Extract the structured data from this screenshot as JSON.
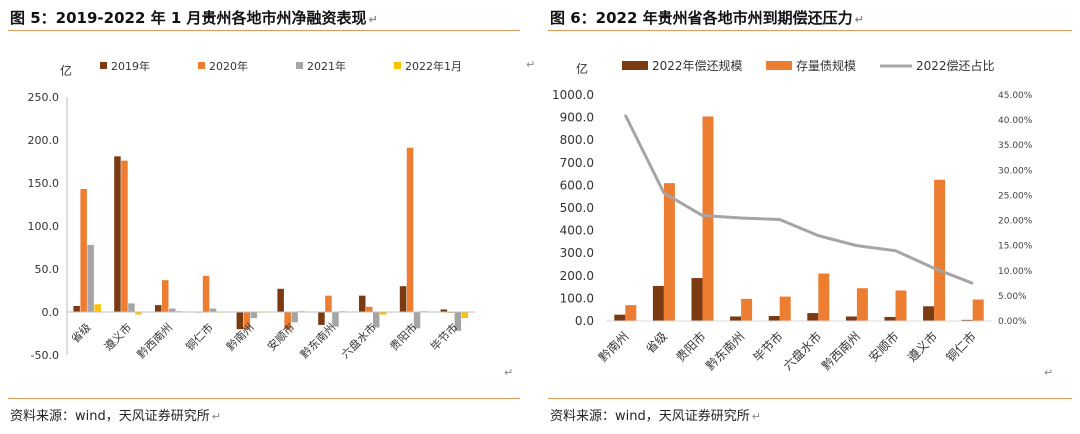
{
  "left": {
    "title": "图 5：2019-2022 年 1 月贵州各地市州净融资表现",
    "source": "资料来源：wind，天风证券研究所",
    "return_mark": "↵",
    "chart_data": {
      "type": "bar",
      "title": "图 5：2019-2022 年 1 月贵州各地市州净融资表现",
      "ylabel": "亿",
      "xlabel": "",
      "ylim": [
        -50,
        250
      ],
      "yticks": [
        "-50.0",
        "0.0",
        "50.0",
        "100.0",
        "150.0",
        "200.0",
        "250.0"
      ],
      "ytick_values": [
        -50,
        0,
        50,
        100,
        150,
        200,
        250
      ],
      "categories": [
        "省级",
        "遵义市",
        "黔西南州",
        "铜仁市",
        "黔南州",
        "安顺市",
        "黔东南州",
        "六盘水市",
        "贵阳市",
        "毕节市"
      ],
      "series": [
        {
          "name": "2019年",
          "color": "#7b3a12",
          "values": [
            7,
            181,
            8,
            0,
            -20,
            27,
            -15,
            19,
            30,
            3
          ]
        },
        {
          "name": "2020年",
          "color": "#ed7d31",
          "values": [
            143,
            176,
            37,
            42,
            -20,
            -20,
            19,
            6,
            191,
            -1
          ]
        },
        {
          "name": "2021年",
          "color": "#a5a5a5",
          "values": [
            78,
            10,
            4,
            4,
            -7,
            -12,
            -17,
            -18,
            -19,
            -22
          ]
        },
        {
          "name": "2022年1月",
          "color": "#ffc000",
          "values": [
            9,
            -3,
            1,
            0,
            0,
            1,
            1,
            -3,
            1,
            -7
          ]
        }
      ],
      "legend_position": "top",
      "grid": false
    }
  },
  "right": {
    "title": "图 6：2022 年贵州省各地市州到期偿还压力",
    "source": "资料来源：wind，天风证券研究所",
    "return_mark": "↵",
    "chart_data": {
      "type": "bar",
      "title": "图 6：2022 年贵州省各地市州到期偿还压力",
      "ylabel": "亿",
      "xlabel": "",
      "ylim": [
        0,
        1000
      ],
      "yticks": [
        "0.0",
        "100.0",
        "200.0",
        "300.0",
        "400.0",
        "500.0",
        "600.0",
        "700.0",
        "800.0",
        "900.0",
        "1000.0"
      ],
      "ytick_values": [
        0,
        100,
        200,
        300,
        400,
        500,
        600,
        700,
        800,
        900,
        1000
      ],
      "y2lim": [
        0,
        45
      ],
      "y2ticks": [
        "0.00%",
        "5.00%",
        "10.00%",
        "15.00%",
        "20.00%",
        "25.00%",
        "30.00%",
        "35.00%",
        "40.00%",
        "45.00%"
      ],
      "y2tick_values": [
        0,
        5,
        10,
        15,
        20,
        25,
        30,
        35,
        40,
        45
      ],
      "categories": [
        "黔南州",
        "省级",
        "贵阳市",
        "黔东南州",
        "毕节市",
        "六盘水市",
        "黔西南州",
        "安顺市",
        "遵义市",
        "铜仁市"
      ],
      "series": [
        {
          "name": "2022年偿还规模",
          "color": "#7b3a12",
          "kind": "bar",
          "axis": "left",
          "values": [
            28,
            155,
            190,
            20,
            22,
            35,
            20,
            18,
            65,
            5
          ]
        },
        {
          "name": "存量债规模",
          "color": "#ed7d31",
          "kind": "bar",
          "axis": "left",
          "values": [
            70,
            610,
            905,
            98,
            108,
            210,
            145,
            135,
            625,
            95
          ]
        },
        {
          "name": "2022偿还占比",
          "color": "#a5a5a5",
          "kind": "line",
          "axis": "right",
          "values": [
            41,
            25.5,
            21,
            20.5,
            20.2,
            17,
            15,
            14,
            10.5,
            7.5
          ]
        }
      ],
      "legend_position": "top",
      "grid": false
    }
  }
}
